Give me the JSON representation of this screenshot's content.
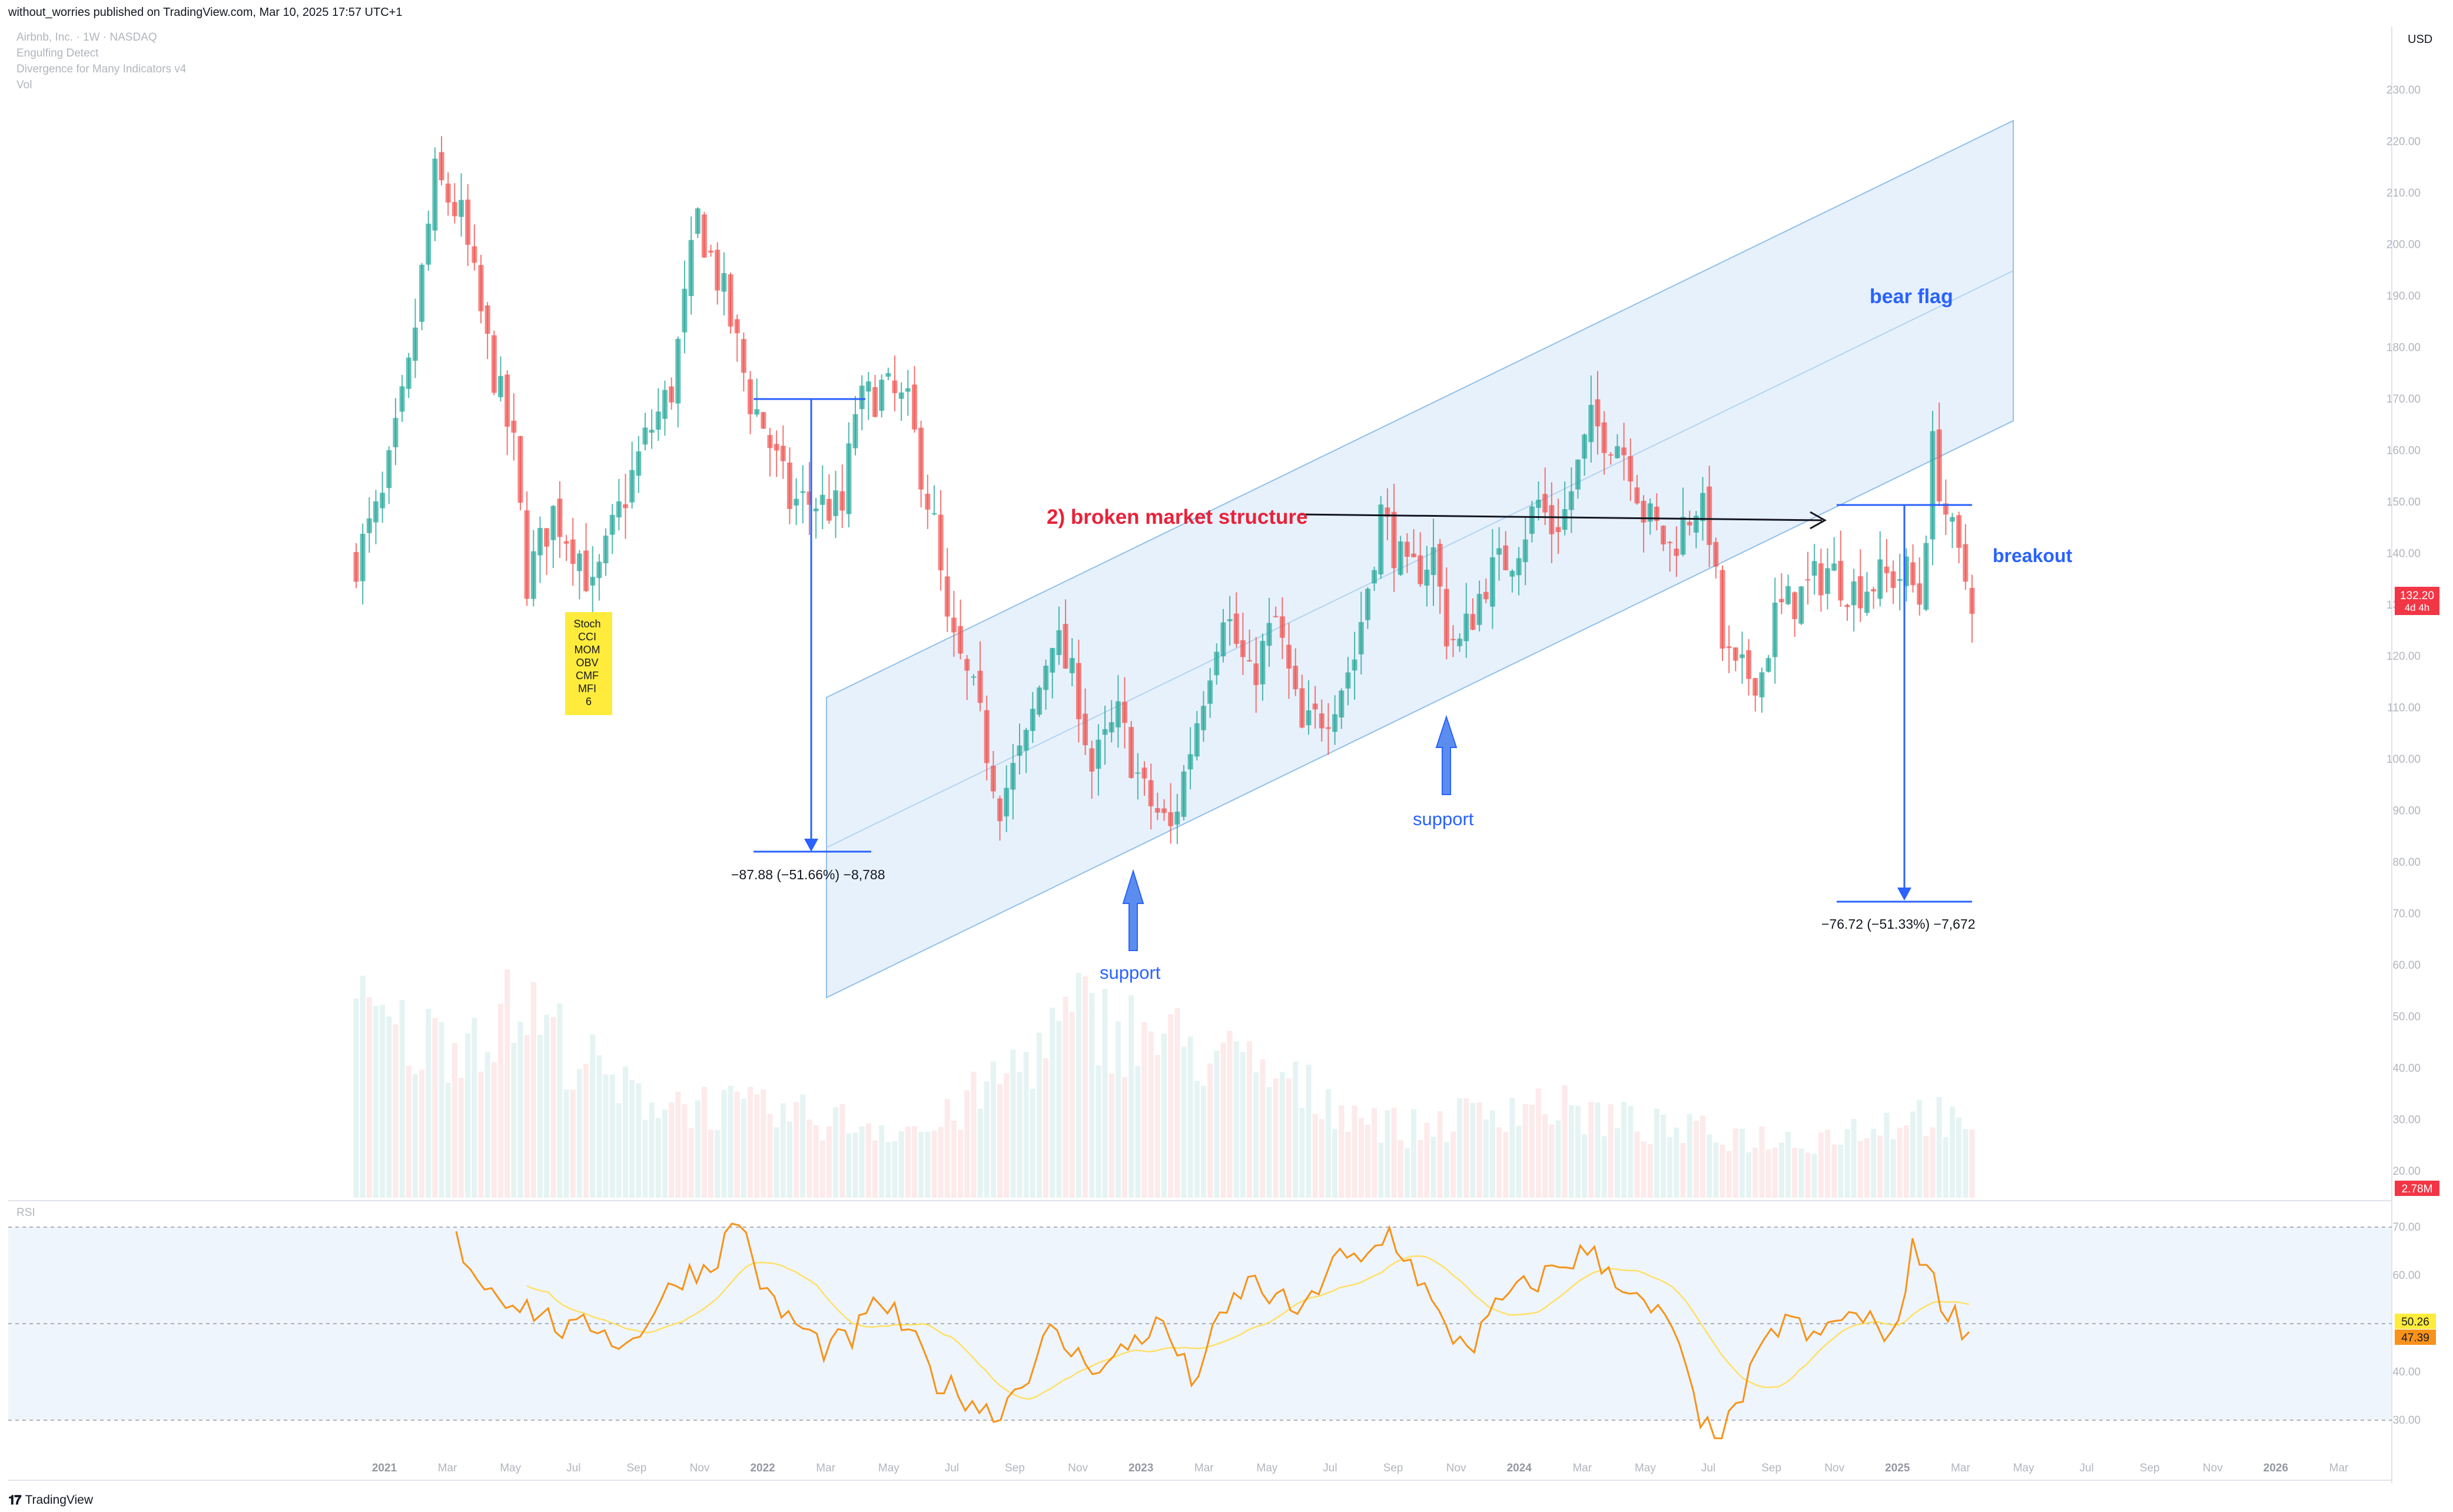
{
  "header": {
    "publisher": "without_worries published on TradingView.com, Mar 10, 2025 17:57 UTC+1"
  },
  "legend": {
    "symbol": "Airbnb, Inc. · 1W · NASDAQ",
    "indicators": [
      "Engulfing Detect",
      "Divergence for Many Indicators v4",
      "Vol"
    ]
  },
  "rsi_label": "RSI",
  "currency": "USD",
  "footer": {
    "brand": "TradingView"
  },
  "colors": {
    "up": "#26a69a",
    "down": "#ef5350",
    "accent": "#2962ff",
    "rsi": "#f7931a",
    "rsi_ma": "#ffe066",
    "channel_fill": "#e3effc",
    "red_label": "#e8223a"
  },
  "price_labels": {
    "current": "132.20",
    "countdown": "4d 4h",
    "volume": "2.78M",
    "rsi": "50.26",
    "rsi_ma": "47.39"
  },
  "annotations": {
    "bear_flag": "bear flag",
    "broken_structure": "2) broken market structure",
    "breakout": "breakout",
    "support_1": "support",
    "support_2": "support",
    "measure_1": "−87.88 (−51.66%) −8,788",
    "measure_2": "−76.72 (−51.33%) −7,672",
    "divergence_box": [
      "Stoch",
      "CCI",
      "MOM",
      "OBV",
      "CMF",
      "MFI",
      "6"
    ]
  },
  "chart_data": {
    "type": "candlestick",
    "y_axis": {
      "ticks": [
        20,
        30,
        40,
        50,
        60,
        70,
        80,
        90,
        100,
        110,
        120,
        130,
        140,
        150,
        160,
        170,
        180,
        190,
        200,
        210,
        220,
        230
      ],
      "range": [
        17,
        236
      ]
    },
    "rsi_axis": {
      "ticks": [
        30,
        40,
        60,
        70
      ],
      "range": [
        27,
        74
      ],
      "band": [
        30,
        70
      ],
      "mid": 50
    },
    "x_axis": {
      "labels": [
        "2021",
        "Mar",
        "May",
        "Jul",
        "Sep",
        "Nov",
        "2022",
        "Mar",
        "May",
        "Jul",
        "Sep",
        "Nov",
        "2023",
        "Mar",
        "May",
        "Jul",
        "Sep",
        "Nov",
        "2024",
        "Mar",
        "May",
        "Jul",
        "Sep",
        "Nov",
        "2025",
        "Mar",
        "May",
        "Jul",
        "Sep",
        "Nov",
        "2026",
        "Mar"
      ],
      "years": [
        "2021",
        "2022",
        "2023",
        "2024",
        "2025",
        "2026"
      ]
    },
    "price_path": [
      [
        0,
        139
      ],
      [
        4,
        150
      ],
      [
        8,
        175
      ],
      [
        12,
        213
      ],
      [
        16,
        205
      ],
      [
        20,
        180
      ],
      [
        24,
        160
      ],
      [
        26,
        135
      ],
      [
        30,
        148
      ],
      [
        34,
        140
      ],
      [
        36,
        132
      ],
      [
        40,
        148
      ],
      [
        44,
        162
      ],
      [
        48,
        172
      ],
      [
        52,
        205
      ],
      [
        56,
        190
      ],
      [
        60,
        170
      ],
      [
        62,
        165
      ],
      [
        66,
        150
      ],
      [
        70,
        150
      ],
      [
        74,
        148
      ],
      [
        76,
        168
      ],
      [
        80,
        172
      ],
      [
        84,
        168
      ],
      [
        88,
        145
      ],
      [
        90,
        125
      ],
      [
        94,
        112
      ],
      [
        98,
        92
      ],
      [
        102,
        103
      ],
      [
        106,
        125
      ],
      [
        110,
        112
      ],
      [
        112,
        98
      ],
      [
        116,
        108
      ],
      [
        120,
        93
      ],
      [
        124,
        86
      ],
      [
        128,
        108
      ],
      [
        132,
        130
      ],
      [
        136,
        115
      ],
      [
        140,
        127
      ],
      [
        144,
        105
      ],
      [
        148,
        110
      ],
      [
        152,
        120
      ],
      [
        156,
        148
      ],
      [
        160,
        135
      ],
      [
        164,
        140
      ],
      [
        166,
        125
      ],
      [
        168,
        122
      ],
      [
        172,
        135
      ],
      [
        176,
        140
      ],
      [
        180,
        150
      ],
      [
        182,
        145
      ],
      [
        184,
        148
      ],
      [
        188,
        165
      ],
      [
        192,
        162
      ],
      [
        194,
        158
      ],
      [
        196,
        148
      ],
      [
        200,
        141
      ],
      [
        204,
        150
      ],
      [
        206,
        145
      ],
      [
        208,
        122
      ],
      [
        210,
        116
      ],
      [
        214,
        117
      ],
      [
        216,
        128
      ],
      [
        220,
        132
      ],
      [
        224,
        137
      ],
      [
        228,
        133
      ],
      [
        232,
        135
      ],
      [
        236,
        136
      ],
      [
        238,
        131
      ],
      [
        240,
        160
      ],
      [
        242,
        148
      ],
      [
        244,
        138
      ],
      [
        246,
        132
      ]
    ],
    "volume_path": [
      [
        0,
        0.95
      ],
      [
        10,
        0.8
      ],
      [
        26,
        0.98
      ],
      [
        40,
        0.55
      ],
      [
        60,
        0.45
      ],
      [
        88,
        0.35
      ],
      [
        110,
        0.95
      ],
      [
        130,
        0.75
      ],
      [
        160,
        0.35
      ],
      [
        178,
        0.5
      ],
      [
        200,
        0.35
      ],
      [
        220,
        0.3
      ],
      [
        240,
        0.45
      ],
      [
        246,
        0.3
      ]
    ],
    "rsi_path": [
      [
        0,
        67
      ],
      [
        4,
        58
      ],
      [
        8,
        55
      ],
      [
        12,
        52
      ],
      [
        16,
        48
      ],
      [
        20,
        50
      ],
      [
        24,
        45
      ],
      [
        28,
        53
      ],
      [
        32,
        60
      ],
      [
        36,
        62
      ],
      [
        40,
        72
      ],
      [
        44,
        55
      ],
      [
        48,
        50
      ],
      [
        52,
        45
      ],
      [
        56,
        47
      ],
      [
        60,
        55
      ],
      [
        64,
        48
      ],
      [
        68,
        38
      ],
      [
        72,
        35
      ],
      [
        76,
        31
      ],
      [
        80,
        38
      ],
      [
        84,
        48
      ],
      [
        88,
        43
      ],
      [
        92,
        41
      ],
      [
        96,
        47
      ],
      [
        100,
        50
      ],
      [
        104,
        38
      ],
      [
        108,
        50
      ],
      [
        112,
        59
      ],
      [
        116,
        55
      ],
      [
        120,
        52
      ],
      [
        124,
        64
      ],
      [
        128,
        62
      ],
      [
        132,
        69
      ],
      [
        136,
        60
      ],
      [
        140,
        48
      ],
      [
        144,
        46
      ],
      [
        148,
        55
      ],
      [
        152,
        58
      ],
      [
        156,
        62
      ],
      [
        160,
        65
      ],
      [
        164,
        60
      ],
      [
        168,
        53
      ],
      [
        172,
        50
      ],
      [
        176,
        28
      ],
      [
        180,
        29
      ],
      [
        184,
        42
      ],
      [
        188,
        52
      ],
      [
        192,
        46
      ],
      [
        196,
        52
      ],
      [
        200,
        50
      ],
      [
        204,
        48
      ],
      [
        206,
        68
      ],
      [
        210,
        55
      ],
      [
        214,
        48
      ]
    ]
  }
}
